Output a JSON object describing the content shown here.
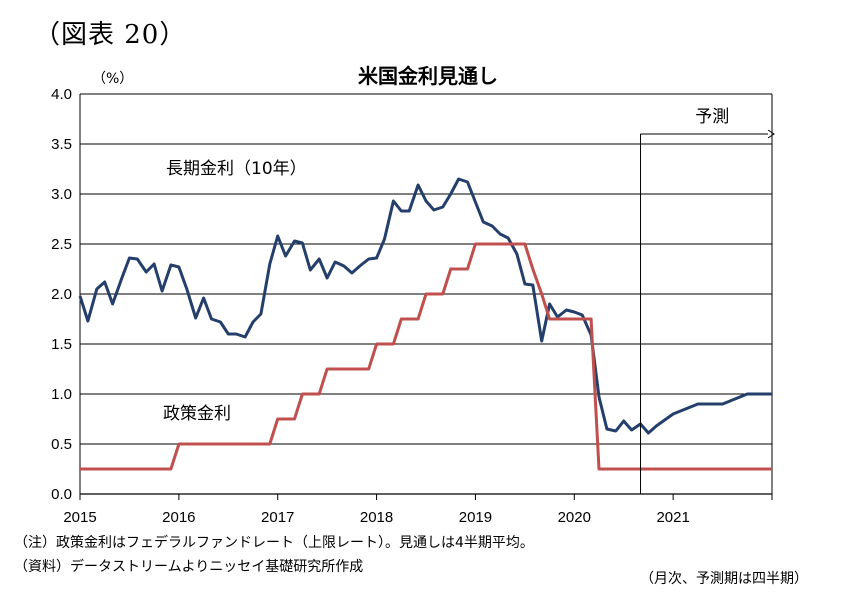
{
  "figure_label": "（図表 20）",
  "notes": {
    "line1": "（注）政策金利はフェデラルファンドレート（上限レート）。見通しは4半期平均。",
    "line2": "（資料）データストリームよりニッセイ基礎研究所作成",
    "line3": "（月次、予測期は四半期）"
  },
  "chart_data": {
    "type": "line",
    "title": "米国金利見通し",
    "unit_label": "（%）",
    "ylim": [
      0,
      4.0
    ],
    "yticks": [
      "0.0",
      "0.5",
      "1.0",
      "1.5",
      "2.0",
      "2.5",
      "3.0",
      "3.5",
      "4.0"
    ],
    "xlim": [
      2015.0,
      2022.0
    ],
    "xticks": [
      "2015",
      "2016",
      "2017",
      "2018",
      "2019",
      "2020",
      "2021"
    ],
    "grid": true,
    "forecast_start": 2020.67,
    "forecast_label": "予測",
    "series": [
      {
        "name": "長期金利（10年）",
        "color": "#243f6b",
        "points": [
          [
            2015.0,
            1.98
          ],
          [
            2015.08,
            1.73
          ],
          [
            2015.17,
            2.05
          ],
          [
            2015.25,
            2.12
          ],
          [
            2015.33,
            1.9
          ],
          [
            2015.42,
            2.15
          ],
          [
            2015.5,
            2.36
          ],
          [
            2015.58,
            2.35
          ],
          [
            2015.67,
            2.22
          ],
          [
            2015.75,
            2.3
          ],
          [
            2015.83,
            2.03
          ],
          [
            2015.92,
            2.29
          ],
          [
            2016.0,
            2.27
          ],
          [
            2016.08,
            2.05
          ],
          [
            2016.17,
            1.76
          ],
          [
            2016.25,
            1.96
          ],
          [
            2016.33,
            1.75
          ],
          [
            2016.42,
            1.72
          ],
          [
            2016.5,
            1.6
          ],
          [
            2016.58,
            1.6
          ],
          [
            2016.67,
            1.57
          ],
          [
            2016.75,
            1.72
          ],
          [
            2016.83,
            1.8
          ],
          [
            2016.92,
            2.3
          ],
          [
            2017.0,
            2.58
          ],
          [
            2017.08,
            2.38
          ],
          [
            2017.17,
            2.53
          ],
          [
            2017.25,
            2.51
          ],
          [
            2017.33,
            2.24
          ],
          [
            2017.42,
            2.35
          ],
          [
            2017.5,
            2.16
          ],
          [
            2017.58,
            2.32
          ],
          [
            2017.67,
            2.28
          ],
          [
            2017.75,
            2.21
          ],
          [
            2017.83,
            2.28
          ],
          [
            2017.92,
            2.35
          ],
          [
            2018.0,
            2.36
          ],
          [
            2018.08,
            2.55
          ],
          [
            2018.17,
            2.93
          ],
          [
            2018.25,
            2.83
          ],
          [
            2018.33,
            2.83
          ],
          [
            2018.42,
            3.09
          ],
          [
            2018.5,
            2.93
          ],
          [
            2018.58,
            2.84
          ],
          [
            2018.67,
            2.87
          ],
          [
            2018.75,
            3.0
          ],
          [
            2018.83,
            3.15
          ],
          [
            2018.92,
            3.12
          ],
          [
            2019.0,
            2.92
          ],
          [
            2019.08,
            2.72
          ],
          [
            2019.17,
            2.68
          ],
          [
            2019.25,
            2.6
          ],
          [
            2019.33,
            2.56
          ],
          [
            2019.42,
            2.4
          ],
          [
            2019.5,
            2.1
          ],
          [
            2019.58,
            2.09
          ],
          [
            2019.67,
            1.53
          ],
          [
            2019.75,
            1.9
          ],
          [
            2019.83,
            1.77
          ],
          [
            2019.92,
            1.84
          ],
          [
            2020.0,
            1.82
          ],
          [
            2020.08,
            1.79
          ],
          [
            2020.17,
            1.59
          ],
          [
            2020.25,
            0.97
          ],
          [
            2020.33,
            0.65
          ],
          [
            2020.42,
            0.63
          ],
          [
            2020.5,
            0.73
          ],
          [
            2020.58,
            0.64
          ],
          [
            2020.67,
            0.7
          ],
          [
            2020.75,
            0.61
          ],
          [
            2020.83,
            0.68
          ],
          [
            2021.0,
            0.8
          ],
          [
            2021.25,
            0.9
          ],
          [
            2021.5,
            0.9
          ],
          [
            2021.75,
            1.0
          ],
          [
            2022.0,
            1.0
          ]
        ],
        "label_at": [
          2015.87,
          3.2
        ]
      },
      {
        "name": "政策金利",
        "color": "#c0504d",
        "points": [
          [
            2015.0,
            0.25
          ],
          [
            2015.92,
            0.25
          ],
          [
            2016.0,
            0.5
          ],
          [
            2016.92,
            0.5
          ],
          [
            2017.0,
            0.75
          ],
          [
            2017.17,
            0.75
          ],
          [
            2017.25,
            1.0
          ],
          [
            2017.42,
            1.0
          ],
          [
            2017.5,
            1.25
          ],
          [
            2017.92,
            1.25
          ],
          [
            2018.0,
            1.5
          ],
          [
            2018.17,
            1.5
          ],
          [
            2018.25,
            1.75
          ],
          [
            2018.42,
            1.75
          ],
          [
            2018.5,
            2.0
          ],
          [
            2018.67,
            2.0
          ],
          [
            2018.75,
            2.25
          ],
          [
            2018.92,
            2.25
          ],
          [
            2019.0,
            2.5
          ],
          [
            2019.5,
            2.5
          ],
          [
            2019.58,
            2.25
          ],
          [
            2019.67,
            2.0
          ],
          [
            2019.75,
            1.75
          ],
          [
            2020.17,
            1.75
          ],
          [
            2020.25,
            0.25
          ],
          [
            2022.0,
            0.25
          ]
        ],
        "label_at": [
          2015.84,
          0.75
        ]
      }
    ]
  }
}
